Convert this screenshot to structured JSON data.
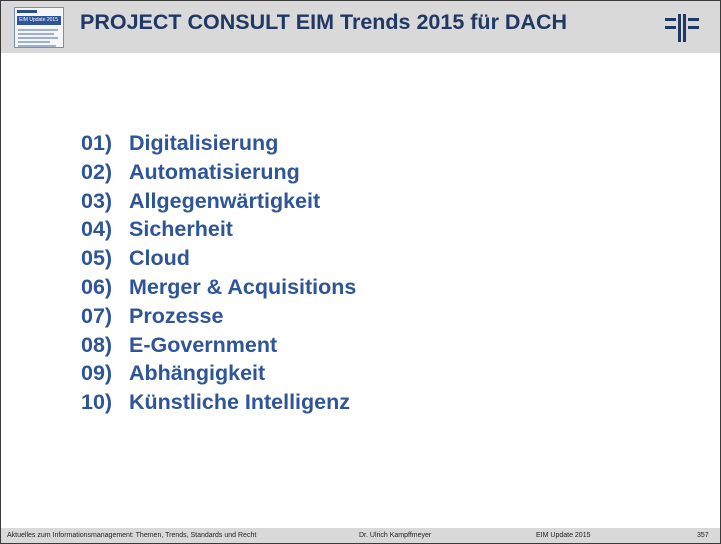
{
  "header": {
    "title": "PROJECT CONSULT EIM Trends 2015 für DACH",
    "thumbnail_label": "EIM Update 2015"
  },
  "trends": [
    {
      "number": "01)",
      "label": "Digitalisierung"
    },
    {
      "number": "02)",
      "label": "Automatisierung"
    },
    {
      "number": "03)",
      "label": "Allgegenwärtigkeit"
    },
    {
      "number": "04)",
      "label": "Sicherheit"
    },
    {
      "number": "05)",
      "label": "Cloud"
    },
    {
      "number": "06)",
      "label": "Merger & Acquisitions"
    },
    {
      "number": "07)",
      "label": "Prozesse"
    },
    {
      "number": "08)",
      "label": "E-Government"
    },
    {
      "number": "09)",
      "label": "Abhängigkeit"
    },
    {
      "number": "10)",
      "label": "Künstliche Intelligenz"
    }
  ],
  "footer": {
    "topic": "Aktuelles zum Informationsmanagement: Themen, Trends, Standards und Recht",
    "author": "Dr. Ulrich Kampffmeyer",
    "event": "EIM Update 2015",
    "page": "357"
  },
  "colors": {
    "title": "#1f3864",
    "list_text": "#2e5597",
    "bars": "#d9d9d9"
  }
}
